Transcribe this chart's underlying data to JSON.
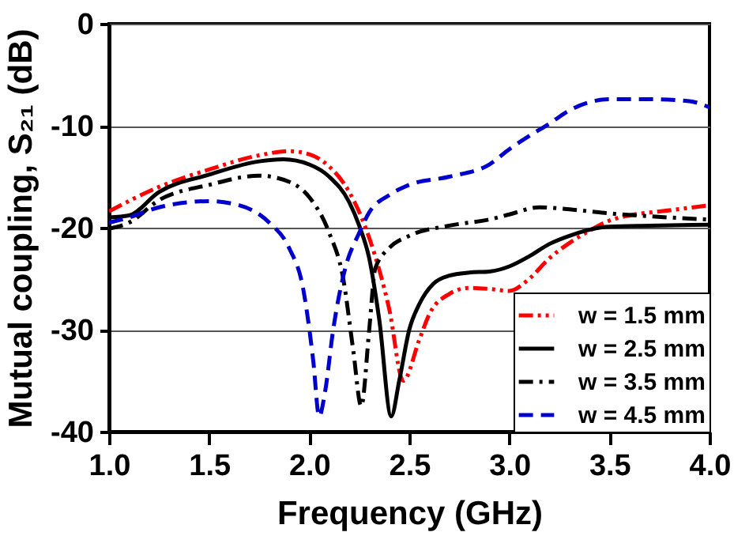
{
  "chart_data": {
    "type": "line",
    "xlabel": "Frequency (GHz)",
    "ylabel": "Mutual coupling, S₂₁ (dB)",
    "xlim": [
      1,
      4
    ],
    "ylim": [
      -40,
      0
    ],
    "xticks": [
      {
        "value": 1,
        "label": "1.0"
      },
      {
        "value": 1.5,
        "label": "1.5"
      },
      {
        "value": 2,
        "label": "2.0"
      },
      {
        "value": 2.5,
        "label": "2.5"
      },
      {
        "value": 3,
        "label": "3.0"
      },
      {
        "value": 3.5,
        "label": "3.5"
      },
      {
        "value": 4,
        "label": "4.0"
      }
    ],
    "yticks": [
      -40,
      -30,
      -20,
      -10,
      0
    ],
    "grid": "y",
    "legend": "bottom right",
    "series": [
      {
        "name": "w = 1.5 mm",
        "color": "#ff0000",
        "line_style": "dashdotdot",
        "x": [
          1.0,
          1.25,
          1.5,
          1.75,
          1.9,
          2.0,
          2.1,
          2.2,
          2.3,
          2.4,
          2.47,
          2.55,
          2.6,
          2.7,
          2.8,
          2.9,
          3.0,
          3.1,
          3.2,
          3.3,
          3.4,
          3.5,
          3.6,
          3.8,
          4.0
        ],
        "values": [
          -18.4,
          -16,
          -14.3,
          -12.9,
          -12.5,
          -12.8,
          -14,
          -16.5,
          -21,
          -28,
          -35,
          -31,
          -28.5,
          -26.5,
          -25.9,
          -26,
          -26.2,
          -25,
          -23,
          -21.5,
          -20.3,
          -19.3,
          -18.8,
          -18.3,
          -17.8
        ]
      },
      {
        "name": "w = 2.5 mm",
        "color": "#000000",
        "line_style": "solid",
        "x": [
          1.0,
          1.1,
          1.25,
          1.5,
          1.75,
          1.87,
          2.0,
          2.1,
          2.2,
          2.25,
          2.3,
          2.35,
          2.41,
          2.45,
          2.5,
          2.55,
          2.62,
          2.7,
          2.8,
          2.9,
          3.0,
          3.1,
          3.2,
          3.3,
          3.5,
          3.7,
          4.0
        ],
        "values": [
          -19,
          -18.8,
          -16.5,
          -14.8,
          -13.5,
          -13.3,
          -13.8,
          -15,
          -17.5,
          -19.8,
          -23,
          -29,
          -38.5,
          -35,
          -30,
          -27.5,
          -25.5,
          -24.7,
          -24.4,
          -24.3,
          -23.8,
          -22.8,
          -21.6,
          -20.8,
          -19.9,
          -19.8,
          -19.7
        ]
      },
      {
        "name": "w = 3.5 mm",
        "color": "#000000",
        "line_style": "dashdot",
        "x": [
          1.0,
          1.1,
          1.25,
          1.5,
          1.75,
          1.9,
          2.0,
          2.1,
          2.17,
          2.22,
          2.26,
          2.3,
          2.33,
          2.4,
          2.5,
          2.7,
          2.9,
          3.0,
          3.15,
          3.3,
          3.5,
          3.8,
          4.0
        ],
        "values": [
          -20.1,
          -19.5,
          -17.3,
          -15.8,
          -14.9,
          -15.5,
          -17,
          -20.5,
          -25,
          -32,
          -37.5,
          -30,
          -24,
          -22,
          -20.8,
          -19.8,
          -19.2,
          -18.7,
          -18,
          -18.2,
          -18.6,
          -19,
          -19.2
        ]
      },
      {
        "name": "w = 4.5 mm",
        "color": "#0000cc",
        "line_style": "dashed",
        "x": [
          1.0,
          1.1,
          1.25,
          1.5,
          1.65,
          1.8,
          1.9,
          1.97,
          2.02,
          2.05,
          2.08,
          2.12,
          2.18,
          2.25,
          2.3,
          2.4,
          2.5,
          2.7,
          2.9,
          3.0,
          3.1,
          3.2,
          3.3,
          3.4,
          3.5,
          3.7,
          3.9,
          4.0
        ],
        "values": [
          -19.5,
          -19,
          -18,
          -17.4,
          -17.8,
          -19.5,
          -22,
          -26,
          -33,
          -38.5,
          -36,
          -30,
          -24,
          -20.5,
          -18.5,
          -16.8,
          -15.8,
          -15,
          -13.8,
          -12.3,
          -11,
          -9.8,
          -8.5,
          -7.7,
          -7.4,
          -7.4,
          -7.6,
          -8.2
        ]
      }
    ]
  }
}
